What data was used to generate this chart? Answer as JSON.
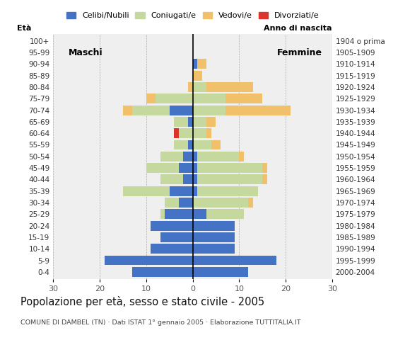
{
  "age_groups": [
    "0-4",
    "5-9",
    "10-14",
    "15-19",
    "20-24",
    "25-29",
    "30-34",
    "35-39",
    "40-44",
    "45-49",
    "50-54",
    "55-59",
    "60-64",
    "65-69",
    "70-74",
    "75-79",
    "80-84",
    "85-89",
    "90-94",
    "95-99",
    "100+"
  ],
  "birth_years": [
    "2000-2004",
    "1995-1999",
    "1990-1994",
    "1985-1989",
    "1980-1984",
    "1975-1979",
    "1970-1974",
    "1965-1969",
    "1960-1964",
    "1955-1959",
    "1950-1954",
    "1945-1949",
    "1940-1944",
    "1935-1939",
    "1930-1934",
    "1925-1929",
    "1920-1924",
    "1915-1919",
    "1910-1914",
    "1905-1909",
    "1904 o prima"
  ],
  "males": {
    "celibi": [
      13,
      19,
      9,
      7,
      9,
      6,
      3,
      5,
      2,
      3,
      2,
      1,
      0,
      1,
      5,
      0,
      0,
      0,
      0,
      0,
      0
    ],
    "coniugati": [
      0,
      0,
      0,
      0,
      0,
      1,
      3,
      10,
      5,
      7,
      5,
      3,
      3,
      3,
      8,
      8,
      0,
      0,
      0,
      0,
      0
    ],
    "vedovi": [
      0,
      0,
      0,
      0,
      0,
      0,
      0,
      0,
      0,
      0,
      0,
      0,
      0,
      0,
      2,
      2,
      1,
      0,
      0,
      0,
      0
    ],
    "divorziati": [
      0,
      0,
      0,
      0,
      0,
      0,
      0,
      0,
      0,
      0,
      0,
      0,
      1,
      0,
      0,
      0,
      0,
      0,
      0,
      0,
      0
    ]
  },
  "females": {
    "nubili": [
      12,
      18,
      9,
      9,
      9,
      3,
      0,
      1,
      1,
      1,
      1,
      0,
      0,
      0,
      0,
      0,
      0,
      0,
      1,
      0,
      0
    ],
    "coniugate": [
      0,
      0,
      0,
      0,
      0,
      8,
      12,
      13,
      14,
      14,
      9,
      4,
      3,
      3,
      7,
      7,
      3,
      0,
      0,
      0,
      0
    ],
    "vedove": [
      0,
      0,
      0,
      0,
      0,
      0,
      1,
      0,
      1,
      1,
      1,
      2,
      1,
      2,
      14,
      8,
      10,
      2,
      2,
      0,
      0
    ],
    "divorziate": [
      0,
      0,
      0,
      0,
      0,
      0,
      0,
      0,
      0,
      0,
      0,
      0,
      0,
      0,
      0,
      0,
      0,
      0,
      0,
      0,
      0
    ]
  },
  "colors": {
    "celibi_nubili": "#4472C4",
    "coniugati": "#C5D89D",
    "vedovi": "#F0C06A",
    "divorziati": "#D9352A"
  },
  "title": "Popolazione per età, sesso e stato civile - 2005",
  "subtitle": "COMUNE DI DAMBEL (TN) · Dati ISTAT 1° gennaio 2005 · Elaborazione TUTTITALIA.IT",
  "xlabel_left": "Maschi",
  "xlabel_right": "Femmine",
  "ylabel_left": "Età",
  "ylabel_right": "Anno di nascita",
  "xlim": 30,
  "legend_labels": [
    "Celibi/Nubili",
    "Coniugati/e",
    "Vedovi/e",
    "Divorziati/e"
  ],
  "background_color": "#ffffff",
  "plot_bg_color": "#efefef"
}
